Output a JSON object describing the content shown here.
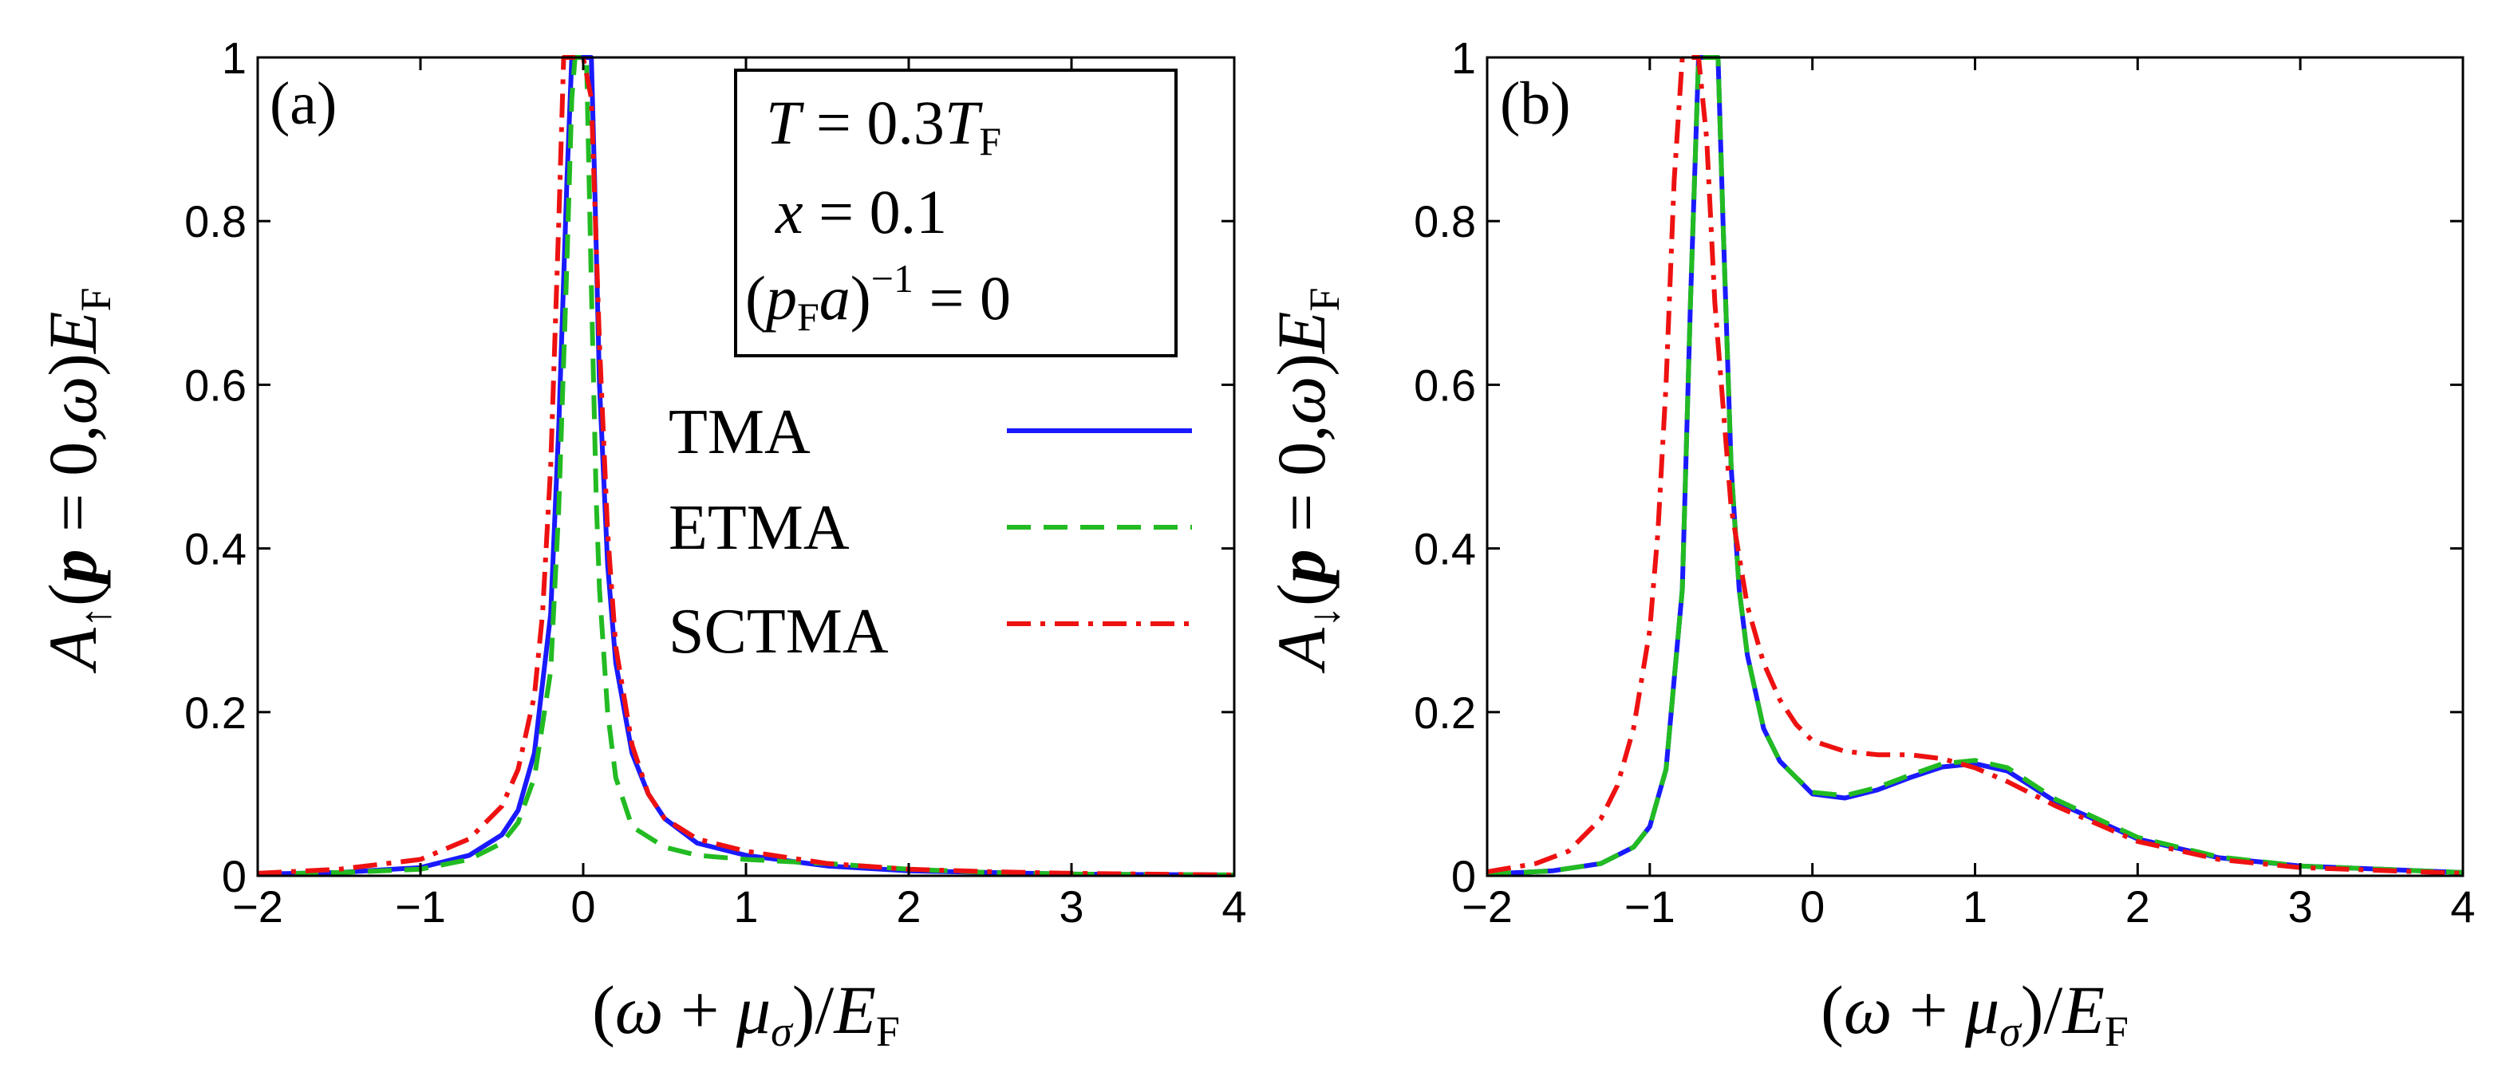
{
  "chart_data": [
    {
      "type": "line",
      "panel_label": "(a)",
      "xlabel": "(ω + μ_σ)/E_F",
      "ylabel": "A↑(p = 0,ω)E_F",
      "xlim": [
        -2,
        4
      ],
      "ylim": [
        0,
        1
      ],
      "xticks": [
        "−2",
        "−1",
        "0",
        "1",
        "2",
        "3",
        "4"
      ],
      "yticks": [
        "0",
        "0.2",
        "0.4",
        "0.6",
        "0.8",
        "1"
      ],
      "series": [
        {
          "name": "TMA",
          "color": "#1a1aff",
          "dash": "solid",
          "x": [
            -2,
            -1.5,
            -1,
            -0.7,
            -0.5,
            -0.4,
            -0.3,
            -0.2,
            -0.15,
            -0.1,
            -0.07,
            -0.05,
            0,
            0.03,
            0.05,
            0.07,
            0.1,
            0.15,
            0.2,
            0.3,
            0.4,
            0.5,
            0.7,
            1,
            1.5,
            2,
            2.5,
            3,
            4
          ],
          "y": [
            0.002,
            0.004,
            0.01,
            0.025,
            0.05,
            0.08,
            0.15,
            0.32,
            0.55,
            0.85,
            1.0,
            1.0,
            1.0,
            1.0,
            1.0,
            0.85,
            0.6,
            0.38,
            0.26,
            0.15,
            0.1,
            0.07,
            0.04,
            0.025,
            0.012,
            0.006,
            0.004,
            0.002,
            0.001
          ]
        },
        {
          "name": "ETMA",
          "color": "#22bb22",
          "dash": "dashed",
          "x": [
            -2,
            -1.5,
            -1,
            -0.7,
            -0.5,
            -0.4,
            -0.3,
            -0.2,
            -0.15,
            -0.1,
            -0.07,
            -0.05,
            -0.03,
            0,
            0.02,
            0.05,
            0.08,
            0.1,
            0.15,
            0.2,
            0.3,
            0.5,
            0.7,
            1,
            1.5,
            2,
            2.5,
            3,
            4
          ],
          "y": [
            0.002,
            0.004,
            0.008,
            0.02,
            0.04,
            0.065,
            0.12,
            0.25,
            0.45,
            0.75,
            0.95,
            1.0,
            1.0,
            1.0,
            1.0,
            0.72,
            0.46,
            0.35,
            0.2,
            0.12,
            0.06,
            0.035,
            0.025,
            0.02,
            0.015,
            0.008,
            0.004,
            0.002,
            0.001
          ]
        },
        {
          "name": "SCTMA",
          "color": "#ee1111",
          "dash": "dashdot",
          "x": [
            -2,
            -1.5,
            -1,
            -0.7,
            -0.5,
            -0.4,
            -0.3,
            -0.25,
            -0.2,
            -0.15,
            -0.12,
            -0.1,
            -0.05,
            0,
            0.05,
            0.1,
            0.15,
            0.2,
            0.3,
            0.4,
            0.5,
            0.7,
            1,
            1.5,
            2,
            2.5,
            3,
            4
          ],
          "y": [
            0.003,
            0.008,
            0.02,
            0.045,
            0.085,
            0.13,
            0.22,
            0.32,
            0.5,
            0.8,
            1.0,
            1.0,
            1.0,
            1.0,
            0.95,
            0.65,
            0.42,
            0.28,
            0.16,
            0.1,
            0.07,
            0.045,
            0.03,
            0.015,
            0.008,
            0.005,
            0.003,
            0.001
          ]
        }
      ],
      "parameters": [
        "T = 0.3T_F",
        "x = 0.1",
        "(p_F a)^−1 = 0"
      ],
      "legend": [
        "TMA",
        "ETMA",
        "SCTMA"
      ],
      "legend_position": "right"
    },
    {
      "type": "line",
      "panel_label": "(b)",
      "xlabel": "(ω + μ_σ)/E_F",
      "ylabel": "A↓(p = 0,ω)E_F",
      "xlim": [
        -2,
        4
      ],
      "ylim": [
        0,
        1
      ],
      "xticks": [
        "−2",
        "−1",
        "0",
        "1",
        "2",
        "3",
        "4"
      ],
      "yticks": [
        "0",
        "0.2",
        "0.4",
        "0.6",
        "0.8",
        "1"
      ],
      "series": [
        {
          "name": "TMA",
          "color": "#1a1aff",
          "dash": "solid",
          "x": [
            -2,
            -1.6,
            -1.3,
            -1.1,
            -1,
            -0.9,
            -0.8,
            -0.75,
            -0.7,
            -0.65,
            -0.6,
            -0.58,
            -0.55,
            -0.5,
            -0.45,
            -0.4,
            -0.3,
            -0.2,
            -0.1,
            0,
            0.2,
            0.4,
            0.6,
            0.8,
            1.0,
            1.2,
            1.5,
            2,
            2.5,
            3,
            4
          ],
          "y": [
            0.002,
            0.006,
            0.015,
            0.035,
            0.06,
            0.13,
            0.35,
            0.7,
            1.0,
            1.0,
            1.0,
            1.0,
            0.8,
            0.5,
            0.35,
            0.27,
            0.18,
            0.14,
            0.12,
            0.1,
            0.095,
            0.105,
            0.12,
            0.133,
            0.137,
            0.128,
            0.09,
            0.045,
            0.022,
            0.012,
            0.004
          ]
        },
        {
          "name": "ETMA",
          "color": "#22bb22",
          "dash": "dashed",
          "x": [
            -2,
            -1.6,
            -1.3,
            -1.1,
            -1,
            -0.9,
            -0.8,
            -0.75,
            -0.7,
            -0.65,
            -0.6,
            -0.58,
            -0.55,
            -0.5,
            -0.45,
            -0.4,
            -0.3,
            -0.2,
            -0.1,
            0,
            0.2,
            0.4,
            0.6,
            0.8,
            1.0,
            1.2,
            1.5,
            2,
            2.5,
            3,
            4
          ],
          "y": [
            0.002,
            0.006,
            0.015,
            0.035,
            0.06,
            0.13,
            0.35,
            0.7,
            1.0,
            1.0,
            1.0,
            1.0,
            0.8,
            0.5,
            0.35,
            0.27,
            0.18,
            0.14,
            0.12,
            0.102,
            0.098,
            0.108,
            0.123,
            0.137,
            0.141,
            0.132,
            0.093,
            0.047,
            0.023,
            0.012,
            0.004
          ]
        },
        {
          "name": "SCTMA",
          "color": "#ee1111",
          "dash": "dashdot",
          "x": [
            -2,
            -1.7,
            -1.5,
            -1.3,
            -1.2,
            -1.1,
            -1,
            -0.95,
            -0.9,
            -0.85,
            -0.8,
            -0.75,
            -0.7,
            -0.65,
            -0.6,
            -0.5,
            -0.4,
            -0.3,
            -0.2,
            -0.1,
            0,
            0.2,
            0.4,
            0.6,
            0.8,
            1.0,
            1.2,
            1.5,
            2,
            2.5,
            3,
            4
          ],
          "y": [
            0.005,
            0.015,
            0.03,
            0.07,
            0.11,
            0.18,
            0.3,
            0.42,
            0.6,
            0.85,
            1.0,
            1.0,
            1.0,
            0.9,
            0.7,
            0.45,
            0.33,
            0.26,
            0.215,
            0.185,
            0.165,
            0.152,
            0.148,
            0.148,
            0.143,
            0.132,
            0.115,
            0.085,
            0.042,
            0.02,
            0.01,
            0.003
          ]
        }
      ]
    }
  ]
}
